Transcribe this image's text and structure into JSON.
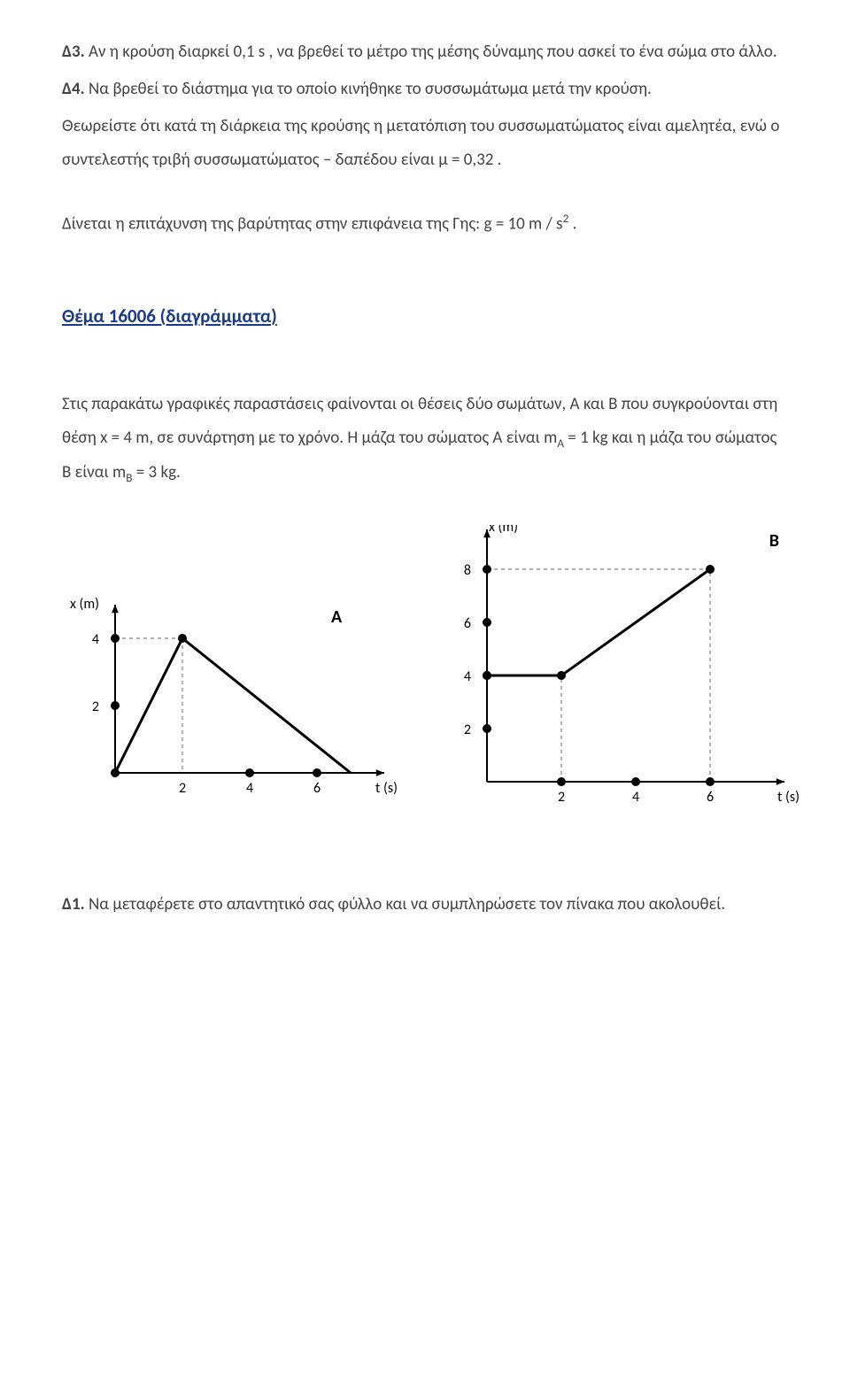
{
  "problems": {
    "d3_label": "Δ3.",
    "d3_text": " Αν η κρούση διαρκεί 0,1 s , να βρεθεί το μέτρο της μέσης δύναμης που ασκεί το ένα σώμα στο άλλο.",
    "d4_label": "Δ4.",
    "d4_text": " Να βρεθεί το διάστημα για το οποίο κινήθηκε το συσσωμάτωμα μετά την κρούση.",
    "assume_text": "Θεωρείστε ότι κατά τη διάρκεια της κρούσης η μετατόπιση του συσσωματώματος είναι αμελητέα, ενώ ο συντελεστής τριβή συσσωματώματος – δαπέδου είναι μ = 0,32 .",
    "given_text_pre": "Δίνεται η επιτάχυνση της βαρύτητας στην επιφάνεια της Γης: g = 10 m / s",
    "given_text_sup": "2",
    "given_text_post": " ."
  },
  "heading": "Θέμα 16006  (διαγράμματα)",
  "intro": {
    "p1_pre": "Στις παρακάτω γραφικές παραστάσεις φαίνονται οι θέσεις δύο σωμάτων, A και B που συγκρούονται στη θέση x = 4 m, σε συνάρτηση με το χρόνο. Η μάζα του σώματος A είναι m",
    "p1_subA": "A",
    "p1_mid": " = 1 kg και η μάζα του σώματος B είναι m",
    "p1_subB": "B",
    "p1_post": " = 3 kg."
  },
  "chartA": {
    "type": "line",
    "title": "A",
    "xlabel": "t (s)",
    "ylabel": "x (m)",
    "x_ticks": [
      2,
      4,
      6
    ],
    "y_ticks": [
      2,
      4
    ],
    "data_points": [
      {
        "t": 0,
        "x": 0
      },
      {
        "t": 2,
        "x": 4
      },
      {
        "t": 7,
        "x": 0
      }
    ],
    "marker_points": [
      {
        "t": 0,
        "x": 0
      },
      {
        "t": 2,
        "x": 4
      },
      {
        "t": 4,
        "x": 0
      },
      {
        "t": 6,
        "x": 0
      }
    ],
    "y_axis_markers": [
      2,
      4
    ],
    "dashed_drop": {
      "from": {
        "t": 2,
        "x": 4
      },
      "to_x": 0,
      "to_y": 0
    },
    "line_color": "#000000",
    "marker_color": "#000000",
    "axis_color": "#000000",
    "dash_color": "#666666",
    "background": "#ffffff",
    "line_width": 3,
    "marker_radius": 5,
    "label_fontsize": 16
  },
  "chartB": {
    "type": "line",
    "title": "B",
    "xlabel": "t (s)",
    "ylabel": "x (m)",
    "x_ticks": [
      2,
      4,
      6
    ],
    "y_ticks": [
      2,
      4,
      6,
      8
    ],
    "data_points": [
      {
        "t": 0,
        "x": 4
      },
      {
        "t": 2,
        "x": 4
      },
      {
        "t": 6,
        "x": 8
      }
    ],
    "marker_points": [
      {
        "t": 0,
        "x": 4
      },
      {
        "t": 2,
        "x": 4
      },
      {
        "t": 6,
        "x": 8
      },
      {
        "t": 2,
        "x": 0
      },
      {
        "t": 4,
        "x": 0
      },
      {
        "t": 6,
        "x": 0
      }
    ],
    "y_axis_markers": [
      2,
      4,
      6,
      8
    ],
    "dashed_lines": [
      {
        "x1": 2,
        "y1": 0,
        "x2": 2,
        "y2": 4
      },
      {
        "x1": 6,
        "y1": 0,
        "x2": 6,
        "y2": 8
      },
      {
        "x1": 0,
        "y1": 8,
        "x2": 6,
        "y2": 8
      }
    ],
    "line_color": "#000000",
    "marker_color": "#000000",
    "axis_color": "#000000",
    "dash_color": "#666666",
    "background": "#ffffff",
    "line_width": 3,
    "marker_radius": 5,
    "label_fontsize": 16
  },
  "bottom": {
    "d1_label": "Δ1.",
    "d1_text": " Να μεταφέρετε στο απαντητικό σας φύλλο και να συμπληρώσετε τον πίνακα που ακολουθεί."
  }
}
